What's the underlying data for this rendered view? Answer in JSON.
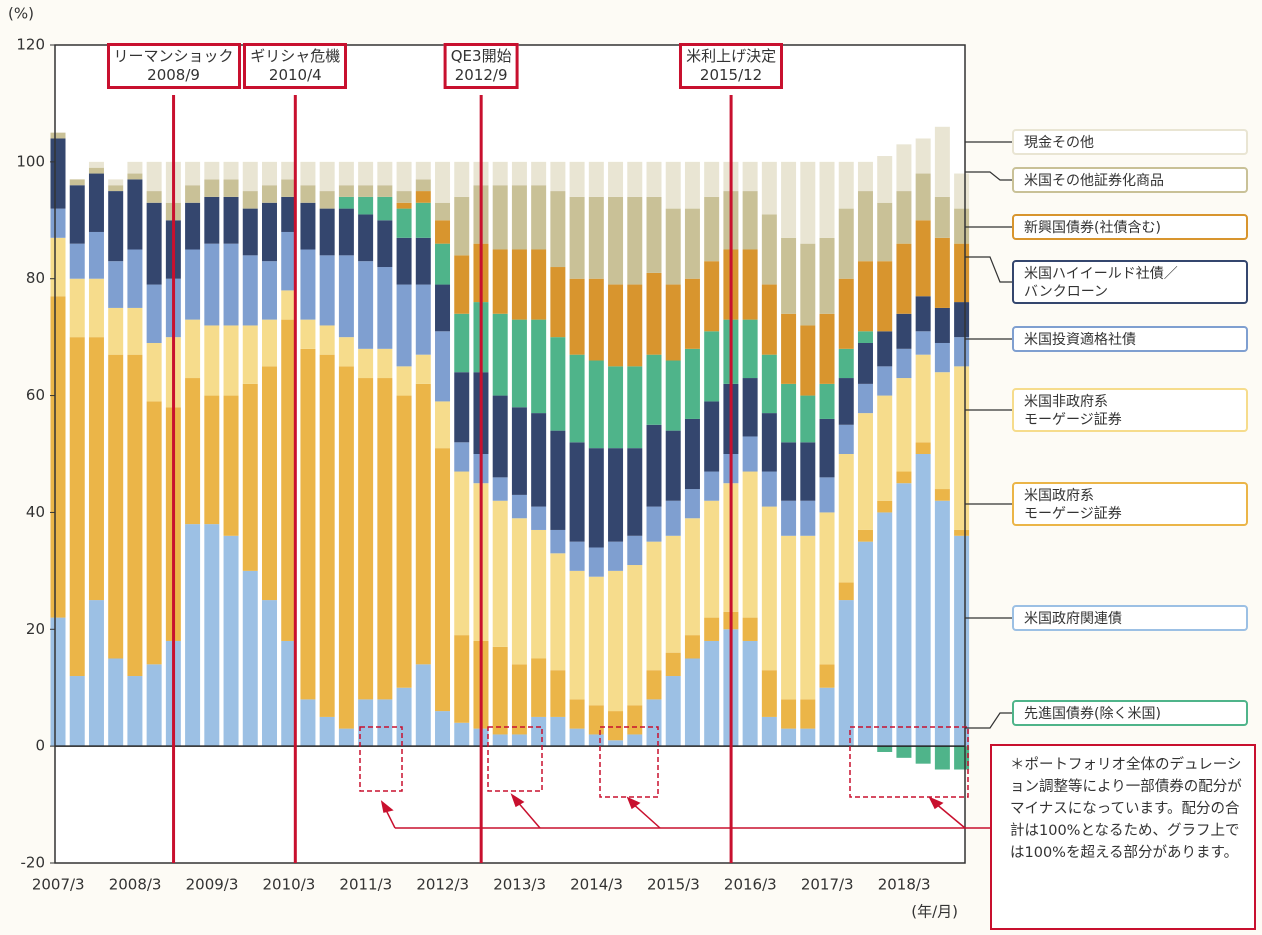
{
  "chart_data": {
    "type": "stacked-bar",
    "y_axis_label": "(%)",
    "x_axis_label": "(年/月)",
    "ylim": [
      -20,
      120
    ],
    "yticks": [
      -20,
      0,
      20,
      40,
      60,
      80,
      100,
      120
    ],
    "categories": [
      "2007/3",
      null,
      null,
      null,
      "2008/3",
      null,
      null,
      null,
      "2009/3",
      null,
      null,
      null,
      "2010/3",
      null,
      null,
      null,
      "2011/3",
      null,
      null,
      null,
      "2012/3",
      null,
      null,
      null,
      "2013/3",
      null,
      null,
      null,
      "2014/3",
      null,
      null,
      null,
      "2015/3",
      null,
      null,
      null,
      "2016/3",
      null,
      null,
      null,
      "2017/3",
      null,
      null,
      null,
      "2018/3",
      null,
      null,
      null
    ],
    "series": [
      {
        "name": "米国政府関連債",
        "color": "#9cc0e4",
        "values": [
          22,
          12,
          25,
          15,
          12,
          14,
          18,
          38,
          38,
          36,
          30,
          25,
          18,
          8,
          5,
          3,
          8,
          8,
          10,
          14,
          6,
          4,
          3,
          2,
          2,
          5,
          5,
          3,
          2,
          1,
          2,
          8,
          12,
          15,
          18,
          20,
          18,
          5,
          3,
          3,
          10,
          25,
          35,
          40,
          45,
          50,
          42,
          36
        ]
      },
      {
        "name": "米国政府系\nモーゲージ証券",
        "color": "#ebb548",
        "values": [
          55,
          58,
          45,
          52,
          55,
          45,
          40,
          25,
          22,
          24,
          32,
          40,
          55,
          60,
          62,
          62,
          55,
          55,
          50,
          48,
          45,
          15,
          15,
          15,
          12,
          10,
          8,
          5,
          5,
          5,
          5,
          5,
          4,
          4,
          4,
          3,
          4,
          8,
          5,
          5,
          4,
          3,
          2,
          2,
          2,
          2,
          2,
          1
        ]
      },
      {
        "name": "米国非政府系\nモーゲージ証券",
        "color": "#f6dc8c",
        "values": [
          10,
          10,
          10,
          8,
          8,
          10,
          12,
          10,
          12,
          12,
          10,
          8,
          5,
          5,
          5,
          5,
          5,
          5,
          5,
          5,
          8,
          28,
          27,
          25,
          25,
          22,
          20,
          22,
          22,
          24,
          24,
          22,
          20,
          20,
          20,
          22,
          25,
          28,
          28,
          28,
          26,
          22,
          20,
          18,
          16,
          15,
          20,
          28
        ]
      },
      {
        "name": "米国投資適格社債",
        "color": "#7f9fd0",
        "values": [
          5,
          6,
          8,
          8,
          10,
          10,
          10,
          12,
          14,
          14,
          12,
          10,
          10,
          12,
          12,
          14,
          15,
          14,
          14,
          12,
          12,
          5,
          5,
          4,
          4,
          4,
          4,
          5,
          5,
          5,
          5,
          6,
          6,
          5,
          5,
          5,
          6,
          6,
          6,
          6,
          6,
          5,
          5,
          5,
          5,
          4,
          5,
          5
        ]
      },
      {
        "name": "米国ハイイールド社債／\nバンクローン",
        "color": "#34466e",
        "values": [
          12,
          10,
          10,
          12,
          12,
          14,
          10,
          8,
          8,
          8,
          8,
          10,
          6,
          8,
          8,
          8,
          8,
          8,
          8,
          8,
          8,
          12,
          14,
          14,
          15,
          16,
          17,
          17,
          17,
          16,
          15,
          14,
          12,
          12,
          12,
          12,
          10,
          10,
          10,
          10,
          10,
          8,
          7,
          6,
          6,
          6,
          6,
          6
        ]
      },
      {
        "name": "先進国債券(除く米国)",
        "color": "#4fb48a",
        "values": [
          0,
          0,
          0,
          0,
          0,
          0,
          0,
          0,
          0,
          0,
          0,
          0,
          0,
          0,
          0,
          2,
          3,
          4,
          5,
          6,
          7,
          10,
          12,
          14,
          15,
          16,
          16,
          15,
          15,
          14,
          14,
          12,
          12,
          12,
          12,
          11,
          10,
          10,
          10,
          8,
          6,
          5,
          2,
          -1,
          -2,
          -3,
          -4,
          -4
        ]
      },
      {
        "name": "新興国債券(社債含む)",
        "color": "#d8952e",
        "values": [
          0,
          0,
          0,
          0,
          0,
          0,
          0,
          0,
          0,
          0,
          0,
          0,
          0,
          0,
          0,
          0,
          0,
          0,
          1,
          2,
          4,
          10,
          10,
          11,
          12,
          12,
          12,
          13,
          14,
          14,
          14,
          14,
          13,
          12,
          12,
          12,
          12,
          12,
          12,
          12,
          12,
          12,
          12,
          12,
          12,
          13,
          12,
          10
        ]
      },
      {
        "name": "米国その他証券化商品",
        "color": "#c9c197",
        "values": [
          1,
          1,
          1,
          1,
          1,
          2,
          3,
          3,
          3,
          3,
          3,
          3,
          3,
          3,
          3,
          2,
          2,
          2,
          2,
          2,
          3,
          10,
          10,
          11,
          11,
          11,
          13,
          14,
          14,
          15,
          15,
          13,
          13,
          12,
          11,
          10,
          10,
          12,
          13,
          14,
          13,
          12,
          12,
          10,
          9,
          8,
          7,
          6
        ]
      },
      {
        "name": "現金その他",
        "color": "#e9e5d3",
        "values": [
          0,
          0,
          1,
          1,
          2,
          5,
          7,
          4,
          3,
          3,
          5,
          4,
          3,
          4,
          5,
          4,
          4,
          4,
          5,
          3,
          7,
          6,
          4,
          4,
          4,
          4,
          5,
          6,
          6,
          6,
          6,
          6,
          8,
          8,
          6,
          5,
          5,
          9,
          13,
          14,
          13,
          8,
          5,
          8,
          8,
          6,
          12,
          6
        ]
      }
    ],
    "annotations": [
      {
        "label": "リーマンショック",
        "date": "2008/9"
      },
      {
        "label": "ギリシャ危機",
        "date": "2010/4"
      },
      {
        "label": "QE3開始",
        "date": "2012/9"
      },
      {
        "label": "米利上げ決定",
        "date": "2015/12"
      }
    ],
    "note": "＊ポートフォリオ全体のデュレーション調整等により一部債券の配分がマイナスになっています。配分の合計は100%となるため、グラフ上では100%を超える部分があります。"
  }
}
